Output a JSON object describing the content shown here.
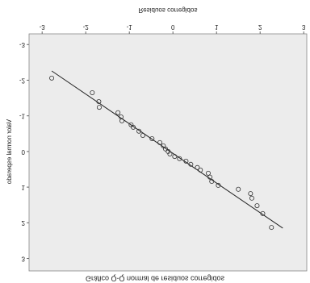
{
  "chart_data": {
    "type": "scatter",
    "title": "Gráfico Q-Q normal de residuos corregidos",
    "x_label": "Residuos corregidos",
    "y_label": "Valor normal esperado",
    "flipped_vertically": true,
    "xlim": [
      -3.3,
      3.07
    ],
    "ylim": [
      -3.3,
      3.35
    ],
    "xticks": [
      -3,
      -2,
      -1,
      0,
      1,
      2,
      3
    ],
    "yticks": [
      -3,
      -2,
      -1,
      0,
      1,
      2,
      3
    ],
    "background": "#ececec",
    "point_color": "#333333",
    "line_color": "#222222",
    "x": [
      -2.78,
      -1.85,
      -1.7,
      -1.69,
      -1.26,
      -1.19,
      -1.17,
      -0.96,
      -0.91,
      -0.78,
      -0.69,
      -0.48,
      -0.3,
      -0.22,
      -0.17,
      -0.11,
      -0.07,
      0.04,
      0.15,
      0.3,
      0.41,
      0.56,
      0.63,
      0.81,
      0.85,
      0.89,
      1.04,
      1.5,
      1.78,
      1.81,
      1.93,
      2.06,
      2.26
    ],
    "y": [
      -2.06,
      -1.65,
      -1.4,
      -1.24,
      -1.09,
      -0.97,
      -0.86,
      -0.75,
      -0.68,
      -0.57,
      -0.45,
      -0.36,
      -0.25,
      -0.16,
      -0.07,
      0,
      0.07,
      0.14,
      0.2,
      0.27,
      0.36,
      0.45,
      0.52,
      0.61,
      0.72,
      0.84,
      0.95,
      1.06,
      1.18,
      1.31,
      1.52,
      1.74,
      2.13
    ],
    "reference_line": {
      "x": [
        -2.78,
        2.52
      ],
      "y": [
        -2.26,
        2.15
      ]
    }
  }
}
